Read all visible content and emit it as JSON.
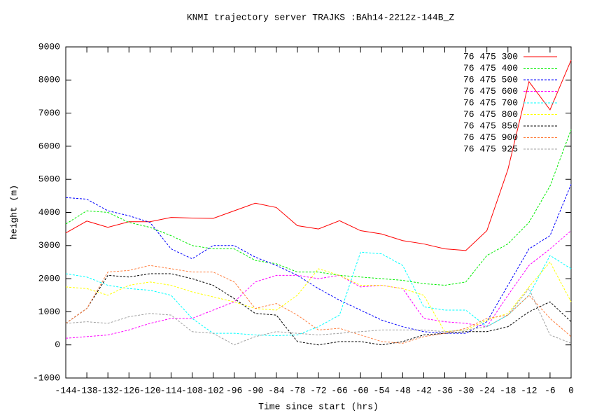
{
  "chart_data": {
    "type": "line",
    "title": "KNMI trajectory server TRAJKS :BAh14-2212z-144B_Z",
    "x_label": "Time since start (hrs)",
    "y_label": "height (m)",
    "x": [
      -144,
      -138,
      -132,
      -126,
      -120,
      -114,
      -108,
      -102,
      -96,
      -90,
      -84,
      -78,
      -72,
      -66,
      -60,
      -54,
      -48,
      -42,
      -36,
      -30,
      -24,
      -18,
      -12,
      -6,
      0
    ],
    "xlim": [
      -144,
      0
    ],
    "xticks": [
      -144,
      -138,
      -132,
      -126,
      -120,
      -114,
      -108,
      -102,
      -96,
      -90,
      -84,
      -78,
      -72,
      -66,
      -60,
      -54,
      -48,
      -42,
      -36,
      -30,
      -24,
      -18,
      -12,
      -6,
      0
    ],
    "ylim": [
      -1000,
      9000
    ],
    "yticks": [
      -1000,
      0,
      1000,
      2000,
      3000,
      4000,
      5000,
      6000,
      7000,
      8000,
      9000
    ],
    "legend": "top-right",
    "series": [
      {
        "name": "76 475 300",
        "color": "#ff0000",
        "values": [
          3380,
          3740,
          3550,
          3720,
          3720,
          3850,
          3830,
          3820,
          4050,
          4280,
          4150,
          3600,
          3500,
          3750,
          3450,
          3350,
          3150,
          3050,
          2900,
          2850,
          3450,
          5300,
          7950,
          7100,
          8600
        ]
      },
      {
        "name": "76 475 400",
        "color": "#00ee00",
        "values": [
          3650,
          4050,
          4000,
          3700,
          3550,
          3300,
          3000,
          2900,
          2900,
          2550,
          2450,
          2200,
          2200,
          2100,
          2050,
          2000,
          1950,
          1850,
          1800,
          1900,
          2700,
          3050,
          3700,
          4800,
          6500
        ]
      },
      {
        "name": "76 475 500",
        "color": "#0000ff",
        "values": [
          4450,
          4400,
          4050,
          3900,
          3700,
          2900,
          2600,
          3000,
          3000,
          2650,
          2400,
          2100,
          1700,
          1350,
          1050,
          750,
          550,
          400,
          350,
          350,
          700,
          1800,
          2900,
          3300,
          4850
        ]
      },
      {
        "name": "76 475 600",
        "color": "#ff00ff",
        "values": [
          200,
          250,
          300,
          450,
          650,
          800,
          800,
          1050,
          1300,
          1900,
          2100,
          2100,
          2000,
          2100,
          1750,
          1800,
          1700,
          800,
          700,
          650,
          550,
          1500,
          2400,
          2900,
          3450
        ]
      },
      {
        "name": "76 475 700",
        "color": "#00ffff",
        "values": [
          2150,
          2050,
          1800,
          1700,
          1650,
          1500,
          800,
          350,
          350,
          300,
          280,
          300,
          550,
          900,
          2800,
          2750,
          2400,
          1150,
          1050,
          1050,
          550,
          900,
          1500,
          2700,
          2300
        ]
      },
      {
        "name": "76 475 800",
        "color": "#ffff00",
        "values": [
          1750,
          1700,
          1500,
          1800,
          1900,
          1800,
          1600,
          1450,
          1300,
          1100,
          1050,
          1500,
          2300,
          2100,
          1800,
          1800,
          1700,
          1500,
          400,
          450,
          750,
          950,
          1750,
          2500,
          1300
        ]
      },
      {
        "name": "76 475 850",
        "color": "#000000",
        "values": [
          650,
          1100,
          2100,
          2050,
          2150,
          2150,
          2000,
          1800,
          1400,
          950,
          900,
          100,
          0,
          100,
          100,
          0,
          100,
          300,
          350,
          400,
          400,
          550,
          1000,
          1300,
          700
        ]
      },
      {
        "name": "76 475 900",
        "color": "#ff7f3f",
        "values": [
          650,
          1100,
          2200,
          2250,
          2400,
          2300,
          2200,
          2200,
          1900,
          1100,
          1250,
          900,
          450,
          500,
          300,
          100,
          50,
          250,
          350,
          500,
          800,
          900,
          1500,
          800,
          250
        ]
      },
      {
        "name": "76 475 925",
        "color": "#a0a0a0",
        "values": [
          650,
          700,
          650,
          850,
          950,
          900,
          400,
          350,
          0,
          250,
          400,
          350,
          300,
          350,
          400,
          450,
          450,
          450,
          400,
          450,
          550,
          900,
          1700,
          300,
          50
        ]
      }
    ]
  }
}
